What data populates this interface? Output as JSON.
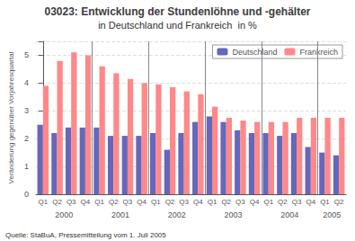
{
  "chart_data": {
    "type": "bar",
    "title": "03023: Entwicklung der Stundenlöhne und -gehälter",
    "subtitle": "in Deutschland und Frankreich  in %",
    "ylabel": "Veränderung gegenüber Vorjahresquartal",
    "categories": [
      "Q1",
      "Q2",
      "Q3",
      "Q4",
      "Q1",
      "Q2",
      "Q3",
      "Q4",
      "Q1",
      "Q2",
      "Q3",
      "Q4",
      "Q1",
      "Q2",
      "Q3",
      "Q4",
      "Q1",
      "Q2",
      "Q3",
      "Q4",
      "Q1",
      "Q2"
    ],
    "category_groups": [
      "2000",
      "2001",
      "2002",
      "2003",
      "2004",
      "2005"
    ],
    "annotations": [
      "Quelle: StaBuA, Pressemitteilung vom 1. Juli 2005"
    ],
    "series": [
      {
        "name": "Deutschland",
        "color": "#6666bb",
        "values": [
          2.5,
          2.2,
          2.4,
          2.4,
          2.4,
          2.1,
          2.1,
          2.1,
          2.2,
          1.6,
          2.2,
          2.6,
          2.8,
          2.6,
          2.3,
          2.2,
          2.2,
          2.1,
          2.2,
          1.7,
          1.5,
          1.4
        ]
      },
      {
        "name": "Frankreich",
        "color": "#ff8888",
        "values": [
          3.9,
          4.8,
          5.1,
          5.0,
          4.6,
          4.35,
          4.15,
          4.0,
          3.95,
          3.85,
          3.7,
          3.6,
          3.15,
          2.75,
          2.65,
          2.6,
          2.6,
          2.6,
          2.75,
          2.75,
          2.75,
          2.75
        ]
      }
    ],
    "ylim": [
      0,
      5.5
    ],
    "yticks": [
      0,
      1,
      2,
      3,
      4,
      5
    ],
    "grid": true,
    "legend": "upper right"
  }
}
